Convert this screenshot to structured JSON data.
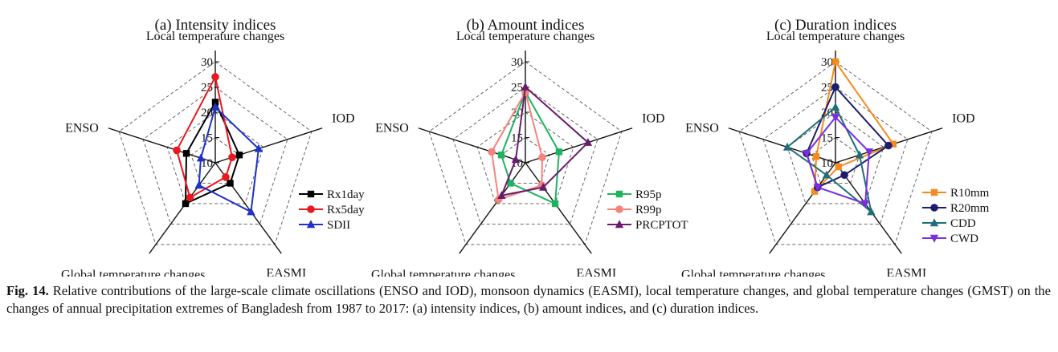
{
  "caption": {
    "label": "Fig. 14.",
    "text": " Relative contributions of the large-scale climate oscillations (ENSO and IOD), monsoon dynamics (EASMI), local temperature changes, and global temperature changes (GMST) on the changes of annual precipitation extremes of Bangladesh from 1987 to 2017: (a) intensity indices, (b) amount indices, and (c) duration indices."
  },
  "chart_data": [
    {
      "type": "radar",
      "title": "(a) Intensity indices",
      "axes": [
        "Local temperature changes",
        "IOD",
        "EASMI",
        "Global temperature changes",
        "ENSO"
      ],
      "rlim": [
        10,
        30
      ],
      "ticks": [
        "10",
        "15",
        "20",
        "25",
        "30"
      ],
      "series": [
        {
          "name": "Rx1day",
          "marker": "square",
          "color": "#000000",
          "values": [
            22,
            15,
            15,
            20,
            16
          ]
        },
        {
          "name": "Rx5day",
          "marker": "circle",
          "color": "#e8191f",
          "values": [
            27,
            13.5,
            13.5,
            18.5,
            18
          ]
        },
        {
          "name": "SDII",
          "marker": "triangle",
          "color": "#1f31c8",
          "values": [
            21,
            19,
            22,
            15.5,
            13
          ]
        }
      ]
    },
    {
      "type": "radar",
      "title": "(b) Amount indices",
      "axes": [
        "Local temperature changes",
        "IOD",
        "EASMI",
        "Global temperature changes",
        "ENSO"
      ],
      "rlim": [
        10,
        30
      ],
      "ticks": [
        "10",
        "15",
        "20",
        "25",
        "30"
      ],
      "series": [
        {
          "name": "R95p",
          "marker": "square",
          "color": "#1db35f",
          "values": [
            24,
            17,
            20,
            15,
            15
          ]
        },
        {
          "name": "R99p",
          "marker": "circle",
          "color": "#f4837d",
          "values": [
            24,
            13.5,
            15.5,
            19,
            17
          ]
        },
        {
          "name": "PRCPTOT",
          "marker": "triangle",
          "color": "#6a1b6e",
          "values": [
            25,
            23,
            16,
            18,
            12
          ]
        }
      ]
    },
    {
      "type": "radar",
      "title": "(c) Duration indices",
      "axes": [
        "Local temperature changes",
        "IOD",
        "EASMI",
        "Global temperature changes",
        "ENSO"
      ],
      "rlim": [
        10,
        30
      ],
      "ticks": [
        "10",
        "15",
        "20",
        "25",
        "30"
      ],
      "series": [
        {
          "name": "R10mm",
          "marker": "square",
          "color": "#f58a1f",
          "values": [
            30,
            22,
            11,
            17,
            14
          ]
        },
        {
          "name": "R20mm",
          "marker": "circle",
          "color": "#1b1e6e",
          "values": [
            25,
            21,
            13,
            16,
            16
          ]
        },
        {
          "name": "CDD",
          "marker": "triangle",
          "color": "#1f6e78",
          "values": [
            21,
            15,
            22,
            13,
            20
          ]
        },
        {
          "name": "CWD",
          "marker": "triangle-down",
          "color": "#7a2ee0",
          "values": [
            19,
            17,
            20,
            16,
            16
          ]
        }
      ]
    }
  ]
}
